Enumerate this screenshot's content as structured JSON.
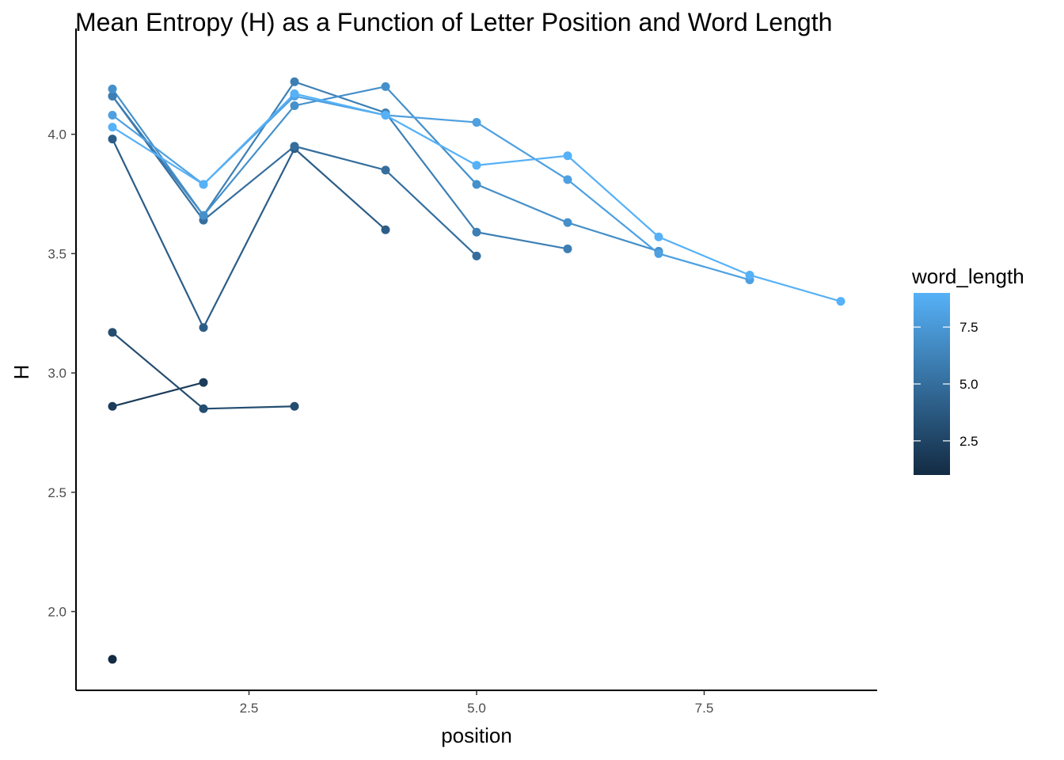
{
  "chart_data": {
    "type": "line",
    "title": "Mean Entropy (H) as a Function of Letter Position and Word Length",
    "xlabel": "position",
    "ylabel": "H",
    "xlim": [
      0.6,
      9.4
    ],
    "ylim": [
      1.67,
      4.43
    ],
    "x_ticks": [
      2.5,
      5.0,
      7.5
    ],
    "x_tick_labels": [
      "2.5",
      "5.0",
      "7.5"
    ],
    "y_ticks": [
      2.0,
      2.5,
      3.0,
      3.5,
      4.0
    ],
    "y_tick_labels": [
      "2.0",
      "2.5",
      "3.0",
      "3.5",
      "4.0"
    ],
    "grid": false,
    "legend": {
      "title": "word_length",
      "placement": "right",
      "range": [
        1,
        9
      ],
      "ticks": [
        2.5,
        5.0,
        7.5
      ],
      "tick_labels": [
        "2.5",
        "5.0",
        "7.5"
      ],
      "low_color": "#132B43",
      "high_color": "#56B1F7"
    },
    "series": [
      {
        "word_length": 1,
        "x": [
          1
        ],
        "y": [
          1.8
        ]
      },
      {
        "word_length": 2,
        "x": [
          1,
          2
        ],
        "y": [
          2.86,
          2.96
        ]
      },
      {
        "word_length": 3,
        "x": [
          1,
          2,
          3
        ],
        "y": [
          3.17,
          2.85,
          2.86
        ]
      },
      {
        "word_length": 4,
        "x": [
          1,
          2,
          3,
          4
        ],
        "y": [
          3.98,
          3.19,
          3.94,
          3.6
        ]
      },
      {
        "word_length": 5,
        "x": [
          1,
          2,
          3,
          4,
          5
        ],
        "y": [
          4.16,
          3.64,
          3.95,
          3.85,
          3.49
        ]
      },
      {
        "word_length": 6,
        "x": [
          1,
          2,
          3,
          4,
          5,
          6
        ],
        "y": [
          4.16,
          3.66,
          4.22,
          4.09,
          3.59,
          3.52
        ]
      },
      {
        "word_length": 7,
        "x": [
          1,
          2,
          3,
          4,
          5,
          6,
          7
        ],
        "y": [
          4.19,
          3.66,
          4.12,
          4.2,
          3.79,
          3.63,
          3.51
        ]
      },
      {
        "word_length": 8,
        "x": [
          1,
          2,
          3,
          4,
          5,
          6,
          7,
          8
        ],
        "y": [
          4.08,
          3.79,
          4.16,
          4.08,
          4.05,
          3.81,
          3.5,
          3.39
        ]
      },
      {
        "word_length": 9,
        "x": [
          1,
          2,
          3,
          4,
          5,
          6,
          7,
          8,
          9
        ],
        "y": [
          4.03,
          3.79,
          4.17,
          4.08,
          3.87,
          3.91,
          3.57,
          3.41,
          3.3
        ]
      }
    ]
  }
}
